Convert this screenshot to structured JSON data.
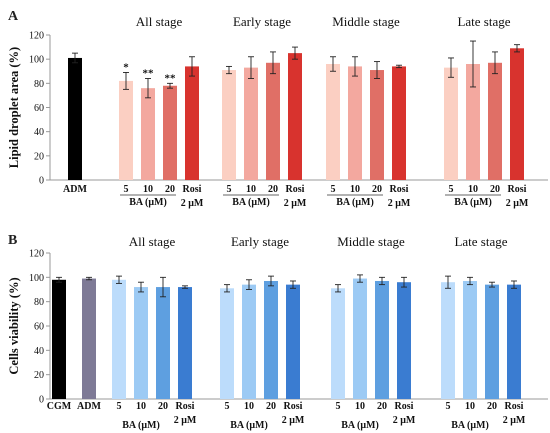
{
  "chart_data": [
    {
      "type": "bar",
      "panel": "A",
      "ylabel": "Lipid droplet area (%)",
      "ylim": [
        0,
        120
      ],
      "yticks": [
        0,
        20,
        40,
        60,
        80,
        100,
        120
      ],
      "stage_titles": [
        "All stage",
        "Early stage",
        "Middle stage",
        "Late stage"
      ],
      "control": [
        {
          "category": "ADM",
          "value": 101,
          "error": 4,
          "color": "#000000"
        }
      ],
      "dose_labels": [
        "5",
        "10",
        "20",
        "Rosi"
      ],
      "rosi_sub": "2 μM",
      "group_label": "BA (μM)",
      "colors": [
        "#fbcfc2",
        "#f3a89f",
        "#e06f66",
        "#d8332e"
      ],
      "groups": [
        {
          "stage": "All stage",
          "values": [
            82,
            76,
            78,
            94
          ],
          "errors": [
            7,
            8,
            2,
            8
          ],
          "significance": [
            "*",
            "**",
            "**",
            ""
          ]
        },
        {
          "stage": "Early stage",
          "values": [
            91,
            93,
            97,
            105
          ],
          "errors": [
            3,
            9,
            9,
            5
          ],
          "significance": [
            "",
            "",
            "",
            ""
          ]
        },
        {
          "stage": "Middle stage",
          "values": [
            96,
            94,
            91,
            94
          ],
          "errors": [
            6,
            8,
            7,
            1
          ],
          "significance": [
            "",
            "",
            "",
            ""
          ]
        },
        {
          "stage": "Late stage",
          "values": [
            93,
            96,
            97,
            109
          ],
          "errors": [
            8,
            19,
            9,
            3
          ],
          "significance": [
            "",
            "",
            "",
            ""
          ]
        }
      ]
    },
    {
      "type": "bar",
      "panel": "B",
      "ylabel": "Cells viability (%)",
      "ylim": [
        0,
        120
      ],
      "yticks": [
        0,
        20,
        40,
        60,
        80,
        100,
        120
      ],
      "stage_titles": [
        "All stage",
        "Early stage",
        "Middle stage",
        "Late stage"
      ],
      "control": [
        {
          "category": "CGM",
          "value": 98,
          "error": 2,
          "color": "#000000"
        },
        {
          "category": "ADM",
          "value": 99,
          "error": 1,
          "color": "#7e7a96"
        }
      ],
      "dose_labels": [
        "5",
        "10",
        "20",
        "Rosi"
      ],
      "rosi_sub": "2 μM",
      "group_label": "BA (μM)",
      "colors": [
        "#bcdcfb",
        "#9ccaf4",
        "#5e9fe0",
        "#3a7cd1"
      ],
      "groups": [
        {
          "stage": "All stage",
          "values": [
            98,
            92,
            92,
            92
          ],
          "errors": [
            3,
            4,
            8,
            1
          ],
          "significance": [
            "",
            "",
            "",
            ""
          ]
        },
        {
          "stage": "Early stage",
          "values": [
            91,
            94,
            97,
            94
          ],
          "errors": [
            3,
            4,
            4,
            3
          ],
          "significance": [
            "",
            "",
            "",
            ""
          ]
        },
        {
          "stage": "Middle stage",
          "values": [
            91,
            99,
            97,
            96
          ],
          "errors": [
            3,
            3,
            3,
            4
          ],
          "significance": [
            "",
            "",
            "",
            ""
          ]
        },
        {
          "stage": "Late stage",
          "values": [
            96,
            97,
            94,
            94
          ],
          "errors": [
            5,
            3,
            2,
            3
          ],
          "significance": [
            "",
            "",
            "",
            ""
          ]
        }
      ]
    }
  ]
}
